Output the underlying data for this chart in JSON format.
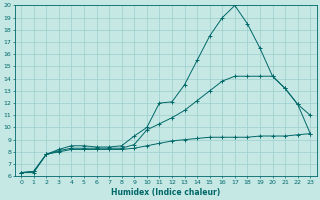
{
  "xlabel": "Humidex (Indice chaleur)",
  "ylabel": "",
  "bg_color": "#c5e8e5",
  "grid_color": "#9ecece",
  "line_color": "#006868",
  "xlim": [
    -0.5,
    23.5
  ],
  "ylim": [
    6,
    20
  ],
  "xticks": [
    0,
    1,
    2,
    3,
    4,
    5,
    6,
    7,
    8,
    9,
    10,
    11,
    12,
    13,
    14,
    15,
    16,
    17,
    18,
    19,
    20,
    21,
    22,
    23
  ],
  "yticks": [
    6,
    7,
    8,
    9,
    10,
    11,
    12,
    13,
    14,
    15,
    16,
    17,
    18,
    19,
    20
  ],
  "series": [
    {
      "x": [
        0,
        1,
        2,
        3,
        4,
        5,
        6,
        7,
        8,
        9,
        10,
        11,
        12,
        13,
        14,
        15,
        16,
        17,
        18,
        19,
        20,
        21,
        22,
        23
      ],
      "y": [
        6.3,
        6.4,
        7.8,
        8.2,
        8.5,
        8.5,
        8.4,
        8.4,
        8.5,
        9.3,
        10.0,
        12.0,
        12.1,
        13.5,
        15.5,
        17.5,
        19.0,
        20.0,
        18.5,
        16.5,
        14.2,
        13.2,
        11.9,
        11.0
      ]
    },
    {
      "x": [
        0,
        1,
        2,
        3,
        4,
        5,
        6,
        7,
        8,
        9,
        10,
        11,
        12,
        13,
        14,
        15,
        16,
        17,
        18,
        19,
        20,
        21,
        22,
        23
      ],
      "y": [
        6.3,
        6.4,
        7.8,
        8.1,
        8.3,
        8.3,
        8.3,
        8.3,
        8.3,
        8.6,
        9.8,
        10.3,
        10.8,
        11.4,
        12.2,
        13.0,
        13.8,
        14.2,
        14.2,
        14.2,
        14.2,
        13.2,
        11.9,
        9.5
      ]
    },
    {
      "x": [
        0,
        1,
        2,
        3,
        4,
        5,
        6,
        7,
        8,
        9,
        10,
        11,
        12,
        13,
        14,
        15,
        16,
        17,
        18,
        19,
        20,
        21,
        22,
        23
      ],
      "y": [
        6.3,
        6.3,
        7.8,
        8.0,
        8.2,
        8.2,
        8.2,
        8.2,
        8.2,
        8.3,
        8.5,
        8.7,
        8.9,
        9.0,
        9.1,
        9.2,
        9.2,
        9.2,
        9.2,
        9.3,
        9.3,
        9.3,
        9.4,
        9.5
      ]
    }
  ]
}
